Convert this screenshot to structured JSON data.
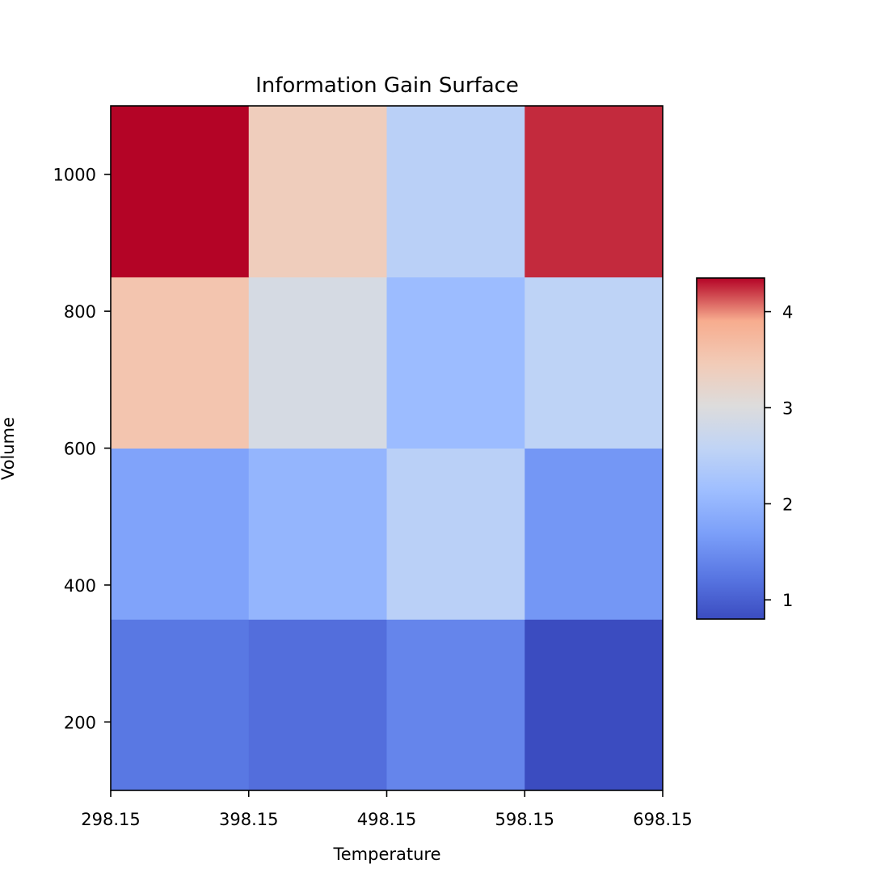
{
  "chart_data": {
    "type": "heatmap",
    "title": "Information Gain Surface",
    "xlabel": "Temperature",
    "ylabel": "Volume",
    "x_edges": [
      298.15,
      398.15,
      498.15,
      598.15,
      698.15
    ],
    "y_edges": [
      100,
      350,
      600,
      850,
      1100
    ],
    "xticks": [
      298.15,
      398.15,
      498.15,
      598.15,
      698.15
    ],
    "xtick_labels": [
      "298.15",
      "398.15",
      "498.15",
      "598.15",
      "698.15"
    ],
    "yticks": [
      200,
      400,
      600,
      800,
      1000
    ],
    "ytick_labels": [
      "200",
      "400",
      "600",
      "800",
      "1000"
    ],
    "xlim": [
      298.15,
      698.15
    ],
    "ylim": [
      100,
      1100
    ],
    "values": [
      [
        1.25,
        1.15,
        1.4,
        0.8
      ],
      [
        1.75,
        2.0,
        2.5,
        1.6
      ],
      [
        3.55,
        2.9,
        2.1,
        2.55
      ],
      [
        4.35,
        3.4,
        2.5,
        4.25
      ]
    ],
    "colormap": "coolwarm",
    "colorbar": {
      "range": [
        0.8,
        4.35
      ],
      "ticks": [
        1,
        2,
        3,
        4
      ],
      "tick_labels": [
        "1",
        "2",
        "3",
        "4"
      ],
      "placement": "right"
    },
    "grid": false
  }
}
